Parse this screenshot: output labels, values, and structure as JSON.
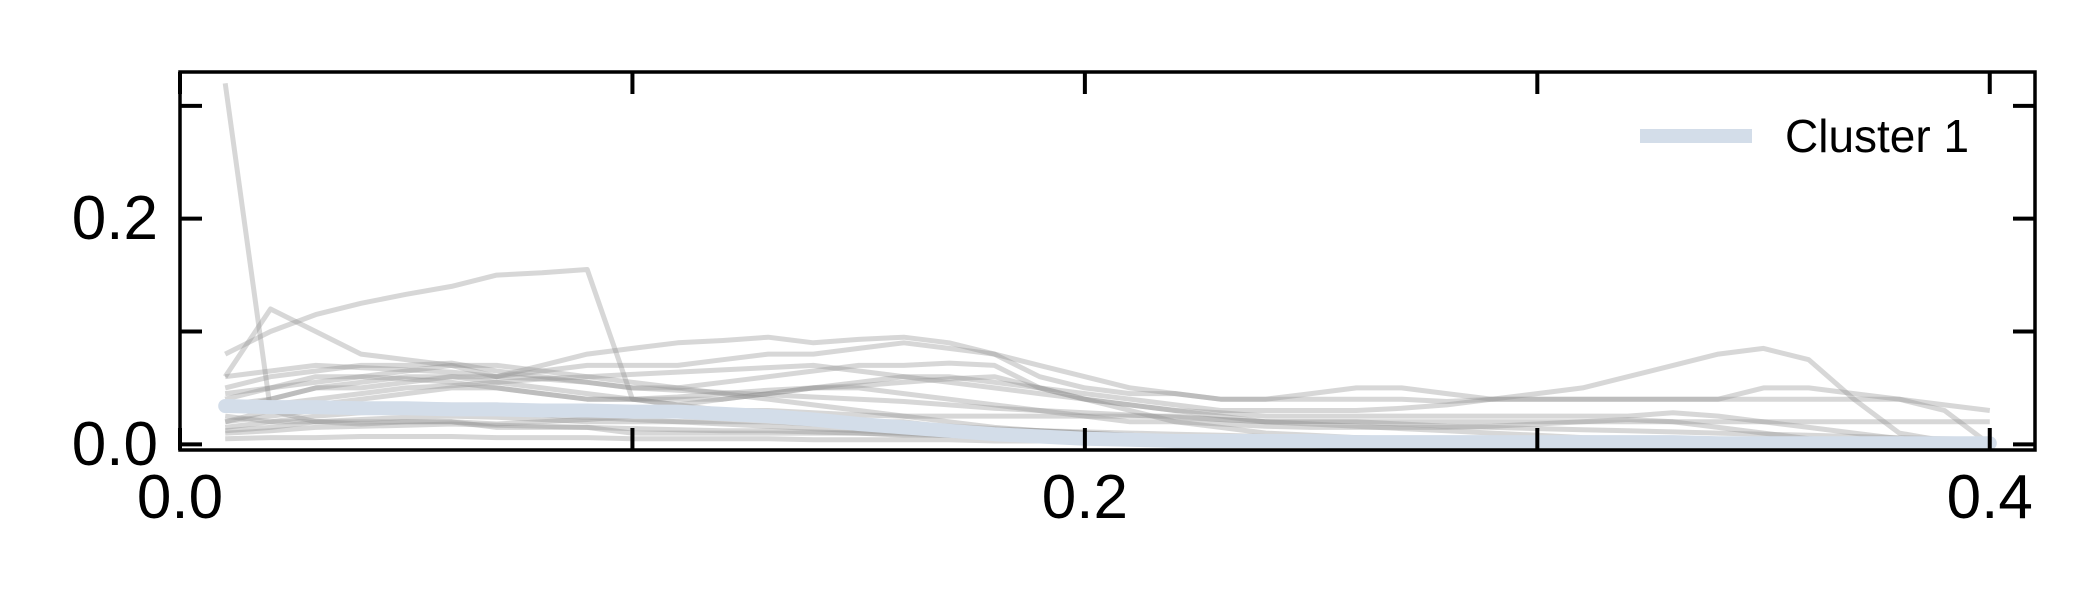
{
  "chart_data": {
    "type": "line",
    "title": "",
    "xlabel": "",
    "ylabel": "",
    "xlim": [
      0.0,
      0.41
    ],
    "ylim": [
      -0.005,
      0.33
    ],
    "x_major_ticks": [
      0.0,
      0.1,
      0.2,
      0.3,
      0.4
    ],
    "x_tick_labels": [
      {
        "value": 0.0,
        "label": "0.0"
      },
      {
        "value": 0.2,
        "label": "0.2"
      },
      {
        "value": 0.4,
        "label": "0.4"
      }
    ],
    "y_major_ticks": [
      0.0,
      0.1,
      0.2,
      0.3
    ],
    "y_tick_labels": [
      {
        "value": 0.0,
        "label": "0.0"
      },
      {
        "value": 0.2,
        "label": "0.2"
      }
    ],
    "grid": false,
    "legend": {
      "placement": "top-right",
      "entries": [
        {
          "label": "Cluster 1",
          "color": "#d3dde9"
        }
      ]
    },
    "colors": {
      "axis": "#000000",
      "background_lines": "#8c8c8c",
      "cluster": "#d3dde9"
    },
    "x": [
      0.01,
      0.02,
      0.03,
      0.04,
      0.05,
      0.06,
      0.07,
      0.08,
      0.09,
      0.1,
      0.11,
      0.12,
      0.13,
      0.14,
      0.15,
      0.16,
      0.17,
      0.18,
      0.19,
      0.2,
      0.21,
      0.22,
      0.23,
      0.24,
      0.25,
      0.26,
      0.27,
      0.28,
      0.29,
      0.3,
      0.31,
      0.32,
      0.33,
      0.34,
      0.35,
      0.36,
      0.37,
      0.38,
      0.39,
      0.4
    ],
    "series": [
      {
        "name": "Cluster 1",
        "values": [
          0.034,
          0.033,
          0.033,
          0.032,
          0.032,
          0.031,
          0.031,
          0.03,
          0.03,
          0.029,
          0.029,
          0.027,
          0.025,
          0.022,
          0.018,
          0.015,
          0.012,
          0.009,
          0.007,
          0.005,
          0.004,
          0.003,
          0.003,
          0.003,
          0.003,
          0.002,
          0.002,
          0.002,
          0.002,
          0.002,
          0.002,
          0.002,
          0.002,
          0.001,
          0.001,
          0.001,
          0.001,
          0.001,
          0.001,
          0.001
        ]
      },
      {
        "values": [
          0.32,
          0.03,
          0.02,
          0.02,
          0.02,
          0.02,
          0.015,
          0.015,
          0.015,
          0.01,
          0.01,
          0.01,
          0.01,
          0.01,
          0.01,
          0.008,
          0.008,
          0.008,
          0.006,
          0.006,
          0.005,
          0.005,
          0.005,
          0.004,
          0.004,
          0.004,
          0.003,
          0.003,
          0.003,
          0.003,
          0.002,
          0.002,
          0.002,
          0.002,
          0.002,
          0.002,
          0.002,
          0.002,
          0.002,
          0.002
        ]
      },
      {
        "values": [
          0.08,
          0.1,
          0.115,
          0.125,
          0.133,
          0.14,
          0.15,
          0.152,
          0.155,
          0.04,
          0.035,
          0.03,
          0.028,
          0.025,
          0.02,
          0.02,
          0.015,
          0.012,
          0.01,
          0.008,
          0.006,
          0.005,
          0.005,
          0.004,
          0.004,
          0.003,
          0.003,
          0.003,
          0.002,
          0.002,
          0.002,
          0.002,
          0.002,
          0.002,
          0.002,
          0.002,
          0.002,
          0.002,
          0.002,
          0.002
        ]
      },
      {
        "values": [
          0.06,
          0.12,
          0.1,
          0.08,
          0.075,
          0.07,
          0.07,
          0.065,
          0.06,
          0.055,
          0.05,
          0.045,
          0.04,
          0.035,
          0.03,
          0.025,
          0.02,
          0.015,
          0.012,
          0.01,
          0.008,
          0.006,
          0.005,
          0.004,
          0.004,
          0.003,
          0.003,
          0.003,
          0.003,
          0.003,
          0.003,
          0.003,
          0.003,
          0.003,
          0.003,
          0.003,
          0.003,
          0.003,
          0.003,
          0.003
        ]
      },
      {
        "values": [
          0.04,
          0.05,
          0.06,
          0.06,
          0.065,
          0.07,
          0.06,
          0.07,
          0.08,
          0.085,
          0.09,
          0.092,
          0.095,
          0.09,
          0.093,
          0.095,
          0.09,
          0.08,
          0.06,
          0.05,
          0.045,
          0.045,
          0.04,
          0.04,
          0.04,
          0.04,
          0.04,
          0.038,
          0.04,
          0.04,
          0.04,
          0.04,
          0.04,
          0.04,
          0.04,
          0.04,
          0.04,
          0.04,
          0.035,
          0.03
        ]
      },
      {
        "values": [
          0.03,
          0.04,
          0.05,
          0.05,
          0.055,
          0.06,
          0.06,
          0.065,
          0.07,
          0.07,
          0.07,
          0.075,
          0.08,
          0.08,
          0.085,
          0.09,
          0.085,
          0.08,
          0.07,
          0.06,
          0.05,
          0.045,
          0.04,
          0.04,
          0.045,
          0.05,
          0.05,
          0.045,
          0.04,
          0.04,
          0.04,
          0.04,
          0.04,
          0.04,
          0.05,
          0.05,
          0.045,
          0.04,
          0.03,
          0.0
        ]
      },
      {
        "values": [
          0.05,
          0.06,
          0.065,
          0.07,
          0.07,
          0.072,
          0.065,
          0.06,
          0.055,
          0.05,
          0.05,
          0.055,
          0.06,
          0.065,
          0.07,
          0.07,
          0.072,
          0.07,
          0.05,
          0.04,
          0.035,
          0.03,
          0.028,
          0.025,
          0.025,
          0.025,
          0.025,
          0.025,
          0.025,
          0.025,
          0.025,
          0.025,
          0.028,
          0.025,
          0.02,
          0.015,
          0.01,
          0.005,
          0.002,
          0.0
        ]
      },
      {
        "values": [
          0.02,
          0.03,
          0.035,
          0.04,
          0.045,
          0.05,
          0.05,
          0.045,
          0.04,
          0.04,
          0.035,
          0.04,
          0.045,
          0.05,
          0.055,
          0.06,
          0.06,
          0.055,
          0.05,
          0.045,
          0.04,
          0.035,
          0.03,
          0.03,
          0.03,
          0.03,
          0.032,
          0.035,
          0.04,
          0.045,
          0.05,
          0.06,
          0.07,
          0.08,
          0.085,
          0.075,
          0.04,
          0.01,
          0.003,
          0.0
        ]
      },
      {
        "values": [
          0.035,
          0.04,
          0.05,
          0.055,
          0.06,
          0.06,
          0.055,
          0.05,
          0.045,
          0.04,
          0.04,
          0.04,
          0.045,
          0.05,
          0.05,
          0.045,
          0.04,
          0.035,
          0.03,
          0.025,
          0.02,
          0.02,
          0.018,
          0.016,
          0.015,
          0.015,
          0.015,
          0.015,
          0.016,
          0.018,
          0.02,
          0.022,
          0.02,
          0.015,
          0.01,
          0.005,
          0.003,
          0.002,
          0.001,
          0.0
        ]
      },
      {
        "values": [
          0.025,
          0.02,
          0.02,
          0.018,
          0.02,
          0.02,
          0.018,
          0.02,
          0.022,
          0.025,
          0.028,
          0.03,
          0.03,
          0.028,
          0.026,
          0.025,
          0.025,
          0.025,
          0.025,
          0.025,
          0.025,
          0.025,
          0.022,
          0.02,
          0.02,
          0.02,
          0.018,
          0.016,
          0.015,
          0.014,
          0.013,
          0.012,
          0.011,
          0.01,
          0.009,
          0.008,
          0.007,
          0.006,
          0.005,
          0.004
        ]
      },
      {
        "values": [
          0.015,
          0.02,
          0.025,
          0.028,
          0.03,
          0.03,
          0.028,
          0.026,
          0.024,
          0.022,
          0.02,
          0.02,
          0.02,
          0.018,
          0.016,
          0.015,
          0.014,
          0.013,
          0.012,
          0.011,
          0.01,
          0.009,
          0.008,
          0.007,
          0.006,
          0.006,
          0.005,
          0.005,
          0.005,
          0.005,
          0.004,
          0.004,
          0.004,
          0.004,
          0.003,
          0.003,
          0.003,
          0.003,
          0.003,
          0.003
        ]
      },
      {
        "values": [
          0.01,
          0.012,
          0.015,
          0.016,
          0.017,
          0.018,
          0.017,
          0.016,
          0.015,
          0.014,
          0.013,
          0.012,
          0.012,
          0.011,
          0.01,
          0.009,
          0.008,
          0.007,
          0.006,
          0.005,
          0.005,
          0.004,
          0.004,
          0.004,
          0.003,
          0.003,
          0.003,
          0.003,
          0.003,
          0.002,
          0.002,
          0.002,
          0.002,
          0.002,
          0.002,
          0.002,
          0.002,
          0.002,
          0.002,
          0.002
        ]
      },
      {
        "values": [
          0.005,
          0.006,
          0.006,
          0.007,
          0.007,
          0.007,
          0.006,
          0.006,
          0.006,
          0.005,
          0.005,
          0.005,
          0.005,
          0.004,
          0.004,
          0.004,
          0.004,
          0.003,
          0.003,
          0.003,
          0.003,
          0.002,
          0.002,
          0.002,
          0.002,
          0.002,
          0.002,
          0.002,
          0.002,
          0.002,
          0.001,
          0.001,
          0.001,
          0.001,
          0.001,
          0.001,
          0.001,
          0.001,
          0.001,
          0.001
        ]
      },
      {
        "values": [
          0.06,
          0.065,
          0.07,
          0.068,
          0.066,
          0.064,
          0.06,
          0.058,
          0.055,
          0.05,
          0.048,
          0.046,
          0.044,
          0.042,
          0.04,
          0.038,
          0.035,
          0.032,
          0.03,
          0.028,
          0.026,
          0.024,
          0.022,
          0.02,
          0.02,
          0.02,
          0.02,
          0.02,
          0.02,
          0.02,
          0.02,
          0.02,
          0.02,
          0.02,
          0.02,
          0.02,
          0.02,
          0.02,
          0.02,
          0.02
        ]
      },
      {
        "values": [
          0.03,
          0.035,
          0.04,
          0.045,
          0.05,
          0.052,
          0.055,
          0.058,
          0.06,
          0.062,
          0.064,
          0.066,
          0.068,
          0.07,
          0.065,
          0.06,
          0.055,
          0.05,
          0.045,
          0.04,
          0.035,
          0.03,
          0.025,
          0.02,
          0.018,
          0.016,
          0.014,
          0.012,
          0.01,
          0.008,
          0.006,
          0.005,
          0.004,
          0.003,
          0.002,
          0.002,
          0.002,
          0.002,
          0.002,
          0.002
        ]
      },
      {
        "values": [
          0.045,
          0.05,
          0.055,
          0.06,
          0.058,
          0.055,
          0.05,
          0.045,
          0.04,
          0.04,
          0.042,
          0.045,
          0.048,
          0.05,
          0.052,
          0.055,
          0.058,
          0.06,
          0.05,
          0.04,
          0.03,
          0.02,
          0.015,
          0.01,
          0.008,
          0.006,
          0.005,
          0.004,
          0.003,
          0.003,
          0.002,
          0.002,
          0.002,
          0.002,
          0.002,
          0.002,
          0.002,
          0.002,
          0.002,
          0.002
        ]
      },
      {
        "values": [
          0.02,
          0.025,
          0.03,
          0.032,
          0.035,
          0.035,
          0.035,
          0.033,
          0.03,
          0.028,
          0.026,
          0.025,
          0.024,
          0.022,
          0.02,
          0.018,
          0.016,
          0.014,
          0.012,
          0.01,
          0.008,
          0.006,
          0.005,
          0.004,
          0.004,
          0.004,
          0.003,
          0.003,
          0.003,
          0.003,
          0.003,
          0.003,
          0.003,
          0.003,
          0.003,
          0.003,
          0.003,
          0.003,
          0.003,
          0.003
        ]
      },
      {
        "values": [
          0.012,
          0.015,
          0.02,
          0.022,
          0.024,
          0.025,
          0.024,
          0.022,
          0.02,
          0.02,
          0.02,
          0.018,
          0.016,
          0.014,
          0.012,
          0.01,
          0.008,
          0.006,
          0.005,
          0.004,
          0.003,
          0.003,
          0.003,
          0.003,
          0.002,
          0.002,
          0.002,
          0.002,
          0.002,
          0.002,
          0.002,
          0.002,
          0.002,
          0.002,
          0.002,
          0.002,
          0.002,
          0.002,
          0.002,
          0.002
        ]
      }
    ]
  }
}
